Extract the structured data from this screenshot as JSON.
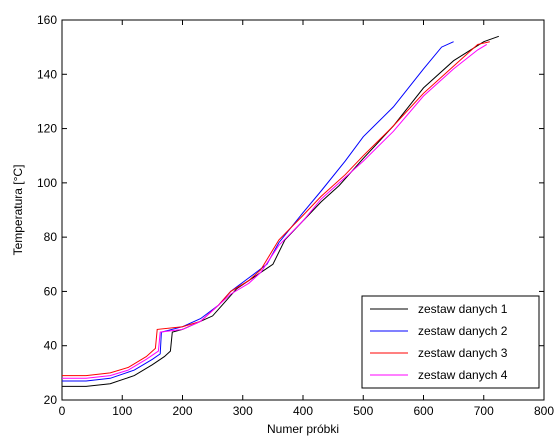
{
  "chart_data": {
    "type": "line",
    "title": "",
    "xlabel": "Numer próbki",
    "ylabel": "Temperatura [°C]",
    "xlim": [
      0,
      800
    ],
    "ylim": [
      20,
      160
    ],
    "xticks": [
      0,
      100,
      200,
      300,
      400,
      500,
      600,
      700,
      800
    ],
    "yticks": [
      20,
      40,
      60,
      80,
      100,
      120,
      140,
      160
    ],
    "grid": false,
    "legend_position": "bottom-right",
    "series": [
      {
        "name": "zestaw danych 1",
        "color": "#000000",
        "points": [
          [
            0,
            25
          ],
          [
            40,
            25
          ],
          [
            80,
            26
          ],
          [
            120,
            29
          ],
          [
            150,
            33
          ],
          [
            170,
            36
          ],
          [
            180,
            38
          ],
          [
            183,
            45
          ],
          [
            200,
            46
          ],
          [
            230,
            49
          ],
          [
            250,
            51
          ],
          [
            270,
            56
          ],
          [
            290,
            61
          ],
          [
            310,
            64
          ],
          [
            330,
            67
          ],
          [
            350,
            70
          ],
          [
            370,
            79
          ],
          [
            400,
            86
          ],
          [
            430,
            93
          ],
          [
            460,
            99
          ],
          [
            500,
            109
          ],
          [
            550,
            121
          ],
          [
            600,
            135
          ],
          [
            650,
            145
          ],
          [
            700,
            152
          ],
          [
            725,
            154
          ]
        ]
      },
      {
        "name": "zestaw danych 2",
        "color": "#0000ff",
        "points": [
          [
            0,
            27
          ],
          [
            40,
            27
          ],
          [
            80,
            28
          ],
          [
            120,
            31
          ],
          [
            150,
            35
          ],
          [
            163,
            37
          ],
          [
            165,
            45
          ],
          [
            200,
            47
          ],
          [
            230,
            50
          ],
          [
            260,
            55
          ],
          [
            280,
            60
          ],
          [
            310,
            65
          ],
          [
            340,
            70
          ],
          [
            360,
            78
          ],
          [
            400,
            89
          ],
          [
            430,
            97
          ],
          [
            470,
            108
          ],
          [
            500,
            117
          ],
          [
            550,
            128
          ],
          [
            600,
            142
          ],
          [
            630,
            150
          ],
          [
            650,
            152
          ]
        ]
      },
      {
        "name": "zestaw danych 3",
        "color": "#ff0000",
        "points": [
          [
            0,
            29
          ],
          [
            40,
            29
          ],
          [
            80,
            30
          ],
          [
            110,
            32
          ],
          [
            140,
            36
          ],
          [
            155,
            39
          ],
          [
            158,
            46
          ],
          [
            200,
            47
          ],
          [
            230,
            49
          ],
          [
            260,
            55
          ],
          [
            280,
            60
          ],
          [
            310,
            64
          ],
          [
            330,
            68
          ],
          [
            360,
            79
          ],
          [
            400,
            88
          ],
          [
            430,
            95
          ],
          [
            470,
            103
          ],
          [
            500,
            110
          ],
          [
            550,
            121
          ],
          [
            600,
            133
          ],
          [
            650,
            143
          ],
          [
            690,
            151
          ],
          [
            710,
            152
          ]
        ]
      },
      {
        "name": "zestaw danych 4",
        "color": "#ff00ff",
        "points": [
          [
            0,
            28
          ],
          [
            40,
            28
          ],
          [
            80,
            29
          ],
          [
            110,
            31
          ],
          [
            140,
            35
          ],
          [
            160,
            38
          ],
          [
            163,
            45
          ],
          [
            200,
            46
          ],
          [
            230,
            49
          ],
          [
            260,
            55
          ],
          [
            280,
            59
          ],
          [
            310,
            63
          ],
          [
            330,
            67
          ],
          [
            360,
            77
          ],
          [
            400,
            86
          ],
          [
            430,
            94
          ],
          [
            470,
            102
          ],
          [
            500,
            108
          ],
          [
            550,
            119
          ],
          [
            600,
            132
          ],
          [
            650,
            142
          ],
          [
            690,
            149
          ],
          [
            705,
            151
          ]
        ]
      }
    ]
  }
}
